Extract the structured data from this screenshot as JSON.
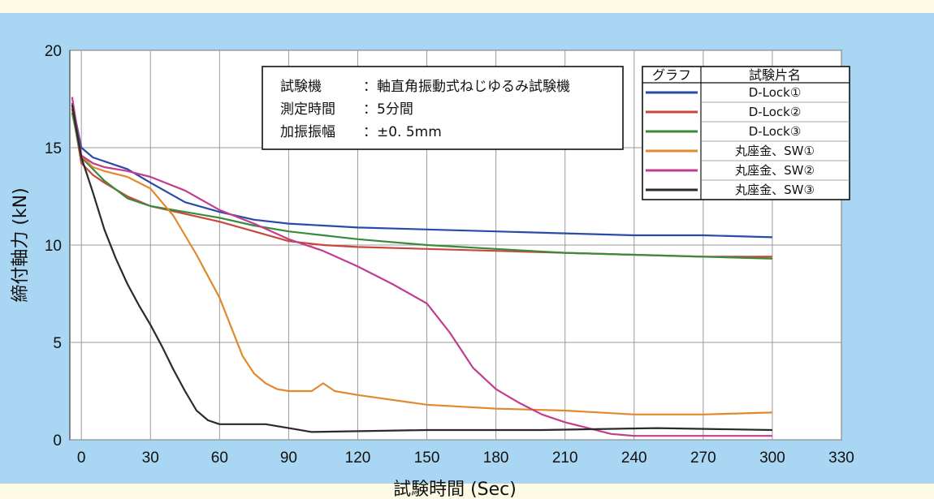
{
  "chart_data": {
    "type": "line",
    "xlabel": "試験時間 (Sec)",
    "ylabel": "締付軸力 (kN)",
    "xlim": [
      -5,
      330
    ],
    "ylim": [
      0,
      20
    ],
    "xticks": [
      0,
      30,
      60,
      90,
      120,
      150,
      180,
      210,
      240,
      270,
      300,
      330
    ],
    "yticks": [
      0,
      5,
      10,
      15,
      20
    ],
    "grid": true,
    "info_box": {
      "rows": [
        {
          "label": "試験機",
          "value": "：軸直角振動式ねじゆるみ試験機"
        },
        {
          "label": "測定時間",
          "value": "：5分間"
        },
        {
          "label": "加振振幅",
          "value": "：±0. 5mm"
        }
      ]
    },
    "legend": {
      "position": "top-right",
      "header_graph": "グラフ",
      "header_name": "試験片名"
    },
    "series": [
      {
        "name": "D-Lock①",
        "color": "#2a4aa8",
        "x": [
          -4,
          0,
          5,
          10,
          20,
          30,
          45,
          60,
          75,
          90,
          105,
          120,
          150,
          180,
          210,
          240,
          270,
          300
        ],
        "y": [
          17.3,
          15.0,
          14.5,
          14.3,
          13.9,
          13.2,
          12.2,
          11.7,
          11.3,
          11.1,
          11.0,
          10.9,
          10.8,
          10.7,
          10.6,
          10.5,
          10.5,
          10.4
        ]
      },
      {
        "name": "D-Lock②",
        "color": "#c9473c",
        "x": [
          -4,
          0,
          5,
          10,
          20,
          30,
          45,
          60,
          75,
          90,
          105,
          120,
          150,
          180,
          210,
          240,
          270,
          300
        ],
        "y": [
          17.0,
          14.2,
          13.6,
          13.2,
          12.5,
          12.0,
          11.6,
          11.2,
          10.7,
          10.2,
          10.0,
          9.9,
          9.8,
          9.7,
          9.6,
          9.5,
          9.4,
          9.4
        ]
      },
      {
        "name": "D-Lock③",
        "color": "#3a8a3c",
        "x": [
          -4,
          0,
          5,
          10,
          20,
          30,
          45,
          60,
          75,
          90,
          105,
          120,
          150,
          180,
          210,
          240,
          270,
          300
        ],
        "y": [
          16.8,
          14.5,
          13.9,
          13.3,
          12.4,
          12.0,
          11.7,
          11.4,
          11.0,
          10.7,
          10.5,
          10.3,
          10.0,
          9.8,
          9.6,
          9.5,
          9.4,
          9.3
        ]
      },
      {
        "name": "丸座金、SW①",
        "color": "#e08a2e",
        "x": [
          -4,
          0,
          5,
          10,
          20,
          30,
          40,
          50,
          60,
          65,
          70,
          75,
          80,
          85,
          90,
          100,
          105,
          110,
          120,
          150,
          180,
          210,
          240,
          270,
          300
        ],
        "y": [
          17.2,
          14.6,
          14.0,
          13.8,
          13.5,
          12.9,
          11.5,
          9.5,
          7.3,
          5.8,
          4.3,
          3.4,
          2.9,
          2.6,
          2.5,
          2.5,
          2.9,
          2.5,
          2.3,
          1.8,
          1.6,
          1.5,
          1.3,
          1.3,
          1.4
        ]
      },
      {
        "name": "丸座金、SW②",
        "color": "#c23c8f",
        "x": [
          -4,
          0,
          5,
          10,
          20,
          30,
          45,
          60,
          75,
          90,
          105,
          120,
          135,
          150,
          160,
          170,
          180,
          190,
          200,
          210,
          220,
          230,
          240,
          270,
          300
        ],
        "y": [
          17.6,
          14.6,
          14.2,
          14.0,
          13.8,
          13.5,
          12.8,
          11.8,
          11.1,
          10.3,
          9.7,
          8.9,
          8.0,
          7.0,
          5.5,
          3.7,
          2.6,
          1.9,
          1.3,
          0.9,
          0.6,
          0.3,
          0.2,
          0.2,
          0.2
        ]
      },
      {
        "name": "丸座金、SW③",
        "color": "#2a2a2a",
        "x": [
          -4,
          0,
          5,
          10,
          15,
          20,
          25,
          30,
          35,
          40,
          45,
          50,
          55,
          60,
          70,
          80,
          90,
          100,
          150,
          200,
          250,
          300
        ],
        "y": [
          17.2,
          14.5,
          12.7,
          10.8,
          9.3,
          8.0,
          6.9,
          5.9,
          4.8,
          3.6,
          2.5,
          1.5,
          1.0,
          0.8,
          0.8,
          0.8,
          0.6,
          0.4,
          0.5,
          0.5,
          0.6,
          0.5
        ]
      }
    ]
  }
}
